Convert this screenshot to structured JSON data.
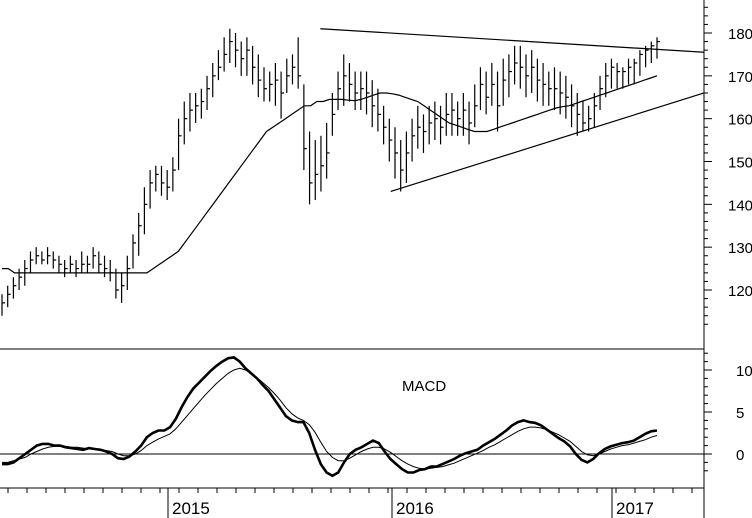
{
  "chart_data": [
    {
      "type": "bar",
      "style": "ohlc-weekly",
      "panel": "price",
      "title": "",
      "xlabel": "",
      "ylabel": "",
      "ylim": [
        110,
        186
      ],
      "y_ticks": [
        120,
        130,
        140,
        150,
        160,
        170,
        180
      ],
      "x_ticks": [
        "2015",
        "2016",
        "2017"
      ],
      "bars_hlc": [
        [
          119,
          114,
          117
        ],
        [
          121,
          116,
          119
        ],
        [
          123,
          118,
          121
        ],
        [
          125,
          120,
          123
        ],
        [
          127,
          121,
          125
        ],
        [
          129,
          124,
          127
        ],
        [
          130,
          126,
          128
        ],
        [
          129,
          126,
          127
        ],
        [
          130,
          126,
          128
        ],
        [
          129,
          125,
          127
        ],
        [
          128,
          124,
          126
        ],
        [
          127,
          123,
          125
        ],
        [
          128,
          124,
          126
        ],
        [
          127,
          123,
          125
        ],
        [
          129,
          124,
          126
        ],
        [
          128,
          124,
          126
        ],
        [
          130,
          125,
          128
        ],
        [
          129,
          124,
          126
        ],
        [
          128,
          123,
          125
        ],
        [
          127,
          122,
          124
        ],
        [
          125,
          118,
          120
        ],
        [
          124,
          117,
          121
        ],
        [
          128,
          120,
          125
        ],
        [
          133,
          125,
          131
        ],
        [
          138,
          128,
          135
        ],
        [
          144,
          133,
          140
        ],
        [
          148,
          139,
          145
        ],
        [
          149,
          143,
          147
        ],
        [
          149,
          142,
          145
        ],
        [
          148,
          141,
          144
        ],
        [
          151,
          143,
          148
        ],
        [
          160,
          148,
          156
        ],
        [
          164,
          154,
          160
        ],
        [
          166,
          157,
          162
        ],
        [
          166,
          159,
          163
        ],
        [
          167,
          160,
          164
        ],
        [
          170,
          162,
          167
        ],
        [
          173,
          165,
          170
        ],
        [
          176,
          169,
          172
        ],
        [
          179,
          171,
          175
        ],
        [
          181,
          173,
          178
        ],
        [
          180,
          172,
          176
        ],
        [
          178,
          170,
          174
        ],
        [
          179,
          170,
          176
        ],
        [
          177,
          168,
          172
        ],
        [
          175,
          165,
          169
        ],
        [
          172,
          164,
          167
        ],
        [
          171,
          164,
          168
        ],
        [
          173,
          163,
          169
        ],
        [
          171,
          160,
          166
        ],
        [
          174,
          166,
          170
        ],
        [
          175,
          168,
          172
        ],
        [
          179,
          167,
          170
        ],
        [
          168,
          148,
          153
        ],
        [
          157,
          140,
          145
        ],
        [
          155,
          141,
          147
        ],
        [
          156,
          143,
          149
        ],
        [
          159,
          146,
          152
        ],
        [
          166,
          156,
          161
        ],
        [
          171,
          162,
          167
        ],
        [
          175,
          163,
          170
        ],
        [
          173,
          164,
          168
        ],
        [
          171,
          162,
          166
        ],
        [
          171,
          162,
          167
        ],
        [
          171,
          161,
          166
        ],
        [
          169,
          158,
          163
        ],
        [
          167,
          157,
          161
        ],
        [
          163,
          154,
          158
        ],
        [
          160,
          150,
          155
        ],
        [
          158,
          146,
          152
        ],
        [
          155,
          143,
          148
        ],
        [
          157,
          145,
          152
        ],
        [
          160,
          150,
          156
        ],
        [
          163,
          153,
          158
        ],
        [
          161,
          152,
          157
        ],
        [
          163,
          154,
          159
        ],
        [
          164,
          155,
          160
        ],
        [
          163,
          154,
          158
        ],
        [
          166,
          156,
          161
        ],
        [
          166,
          156,
          162
        ],
        [
          164,
          156,
          160
        ],
        [
          166,
          156,
          162
        ],
        [
          164,
          154,
          159
        ],
        [
          168,
          158,
          163
        ],
        [
          172,
          162,
          168
        ],
        [
          171,
          161,
          165
        ],
        [
          173,
          163,
          168
        ],
        [
          171,
          157,
          163
        ],
        [
          174,
          163,
          169
        ],
        [
          175,
          165,
          171
        ],
        [
          177,
          168,
          173
        ],
        [
          177,
          167,
          172
        ],
        [
          175,
          165,
          170
        ],
        [
          176,
          166,
          172
        ],
        [
          174,
          164,
          169
        ],
        [
          173,
          163,
          168
        ],
        [
          171,
          163,
          167
        ],
        [
          172,
          162,
          167
        ],
        [
          171,
          161,
          166
        ],
        [
          170,
          160,
          165
        ],
        [
          168,
          158,
          163
        ],
        [
          166,
          156,
          161
        ],
        [
          164,
          157,
          159
        ],
        [
          163,
          157,
          160
        ],
        [
          166,
          158,
          163
        ],
        [
          170,
          162,
          167
        ],
        [
          173,
          165,
          170
        ],
        [
          174,
          167,
          172
        ],
        [
          173,
          167,
          171
        ],
        [
          172,
          167,
          171
        ],
        [
          174,
          168,
          172
        ],
        [
          174,
          168,
          173
        ],
        [
          176,
          170,
          175
        ],
        [
          177,
          172,
          176
        ],
        [
          178,
          173,
          177
        ],
        [
          179,
          174,
          178
        ]
      ],
      "moving_average": [
        125,
        125,
        124,
        124,
        124,
        124,
        124,
        124,
        124,
        124,
        124,
        124,
        124,
        124,
        124,
        124,
        124,
        124,
        124,
        124,
        124,
        124,
        124,
        124,
        125,
        126,
        127,
        128,
        129,
        131,
        133,
        135,
        137,
        139,
        141,
        143,
        145,
        147,
        149,
        151,
        153,
        155,
        157,
        158,
        159,
        160,
        161,
        162,
        163,
        163,
        164,
        164,
        164.5,
        164.5,
        164.5,
        164.3,
        164.2,
        164.5,
        165,
        165.5,
        166,
        166,
        165.8,
        165.5,
        165,
        164.5,
        164,
        163,
        162,
        161,
        160,
        159,
        158.5,
        158,
        157.5,
        157,
        157,
        157,
        157.5,
        158,
        158.5,
        159,
        159.5,
        160,
        160.5,
        161,
        161.5,
        162,
        162.5,
        162.8,
        163,
        163.5,
        164,
        164.5,
        165,
        165.5,
        166,
        166.5,
        167,
        167.5,
        168,
        168.5,
        169,
        169.5,
        170
      ],
      "trendlines": [
        {
          "from": [
            0.455,
            181
          ],
          "to": [
            1.0,
            175.5
          ]
        },
        {
          "from": [
            0.555,
            143
          ],
          "to": [
            1.0,
            166
          ]
        }
      ]
    },
    {
      "type": "line",
      "panel": "indicator",
      "annotation": "MACD",
      "ylim": [
        -4,
        12.5
      ],
      "y_ticks": [
        0,
        5,
        10
      ],
      "series": [
        {
          "values": [
            -1.2,
            -1.2,
            -1,
            -0.5,
            0,
            0.5,
            1,
            1.2,
            1.2,
            1,
            1,
            0.8,
            0.7,
            0.6,
            0.5,
            0.7,
            0.6,
            0.5,
            0.3,
            0,
            -0.5,
            -0.6,
            -0.3,
            0.3,
            1,
            2,
            2.5,
            2.8,
            2.8,
            3.2,
            4.2,
            5.6,
            6.8,
            7.8,
            8.5,
            9.2,
            9.9,
            10.5,
            11,
            11.4,
            11.5,
            11,
            10.2,
            9.6,
            9,
            8.2,
            7.5,
            6.5,
            5.5,
            4.5,
            4,
            3.8,
            3.8,
            2.5,
            0.5,
            -1.2,
            -2.2,
            -2.6,
            -2.2,
            -1,
            0,
            0.5,
            0.8,
            1.2,
            1.6,
            1.3,
            0.3,
            -0.6,
            -1.2,
            -1.8,
            -2.2,
            -2.2,
            -1.9,
            -1.8,
            -1.5,
            -1.5,
            -1.2,
            -0.9,
            -0.6,
            -0.2,
            0.1,
            0.3,
            0.5,
            1,
            1.4,
            1.8,
            2.3,
            2.8,
            3.4,
            3.8,
            4,
            3.8,
            3.7,
            3.4,
            2.9,
            2.4,
            1.9,
            1.5,
            0.9,
            0,
            -0.7,
            -1,
            -0.6,
            0.1,
            0.6,
            0.9,
            1.1,
            1.3,
            1.4,
            1.6,
            2,
            2.4,
            2.7,
            2.8
          ]
        },
        {
          "values": [
            -1,
            -1,
            -0.8,
            -0.6,
            -0.4,
            0,
            0.3,
            0.6,
            0.8,
            0.9,
            0.9,
            0.9,
            0.8,
            0.8,
            0.7,
            0.6,
            0.6,
            0.5,
            0.4,
            0.3,
            0,
            -0.2,
            -0.2,
            0,
            0.4,
            1,
            1.4,
            1.8,
            2.1,
            2.4,
            3,
            3.8,
            4.6,
            5.4,
            6.2,
            7,
            7.7,
            8.4,
            9,
            9.6,
            10,
            10.2,
            10,
            9.6,
            9.1,
            8.5,
            7.9,
            7.2,
            6.4,
            5.5,
            4.8,
            4.3,
            4,
            3.5,
            2.6,
            1.4,
            0.3,
            -0.4,
            -0.8,
            -0.8,
            -0.5,
            -0.1,
            0.3,
            0.6,
            0.8,
            0.8,
            0.6,
            0.2,
            -0.3,
            -0.8,
            -1.2,
            -1.5,
            -1.7,
            -1.8,
            -1.7,
            -1.6,
            -1.5,
            -1.3,
            -1.1,
            -0.8,
            -0.5,
            -0.2,
            0.1,
            0.4,
            0.8,
            1.1,
            1.5,
            1.9,
            2.3,
            2.7,
            3,
            3.2,
            3.2,
            3.1,
            2.9,
            2.6,
            2.3,
            1.9,
            1.5,
            0.9,
            0.3,
            -0.1,
            -0.2,
            0,
            0.3,
            0.6,
            0.8,
            1,
            1.1,
            1.3,
            1.5,
            1.7,
            2,
            2.2
          ]
        }
      ]
    }
  ]
}
